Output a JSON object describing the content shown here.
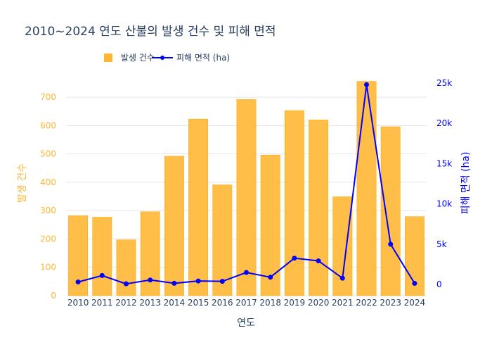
{
  "chart_data": {
    "type": "bar",
    "title": "2010~2024 연도 산불의 발생 건수 및 피해 면적",
    "xlabel": "연도",
    "ylabel_left": "발생 건수",
    "ylabel_right": "피해 면적 (ha)",
    "categories": [
      "2010",
      "2011",
      "2012",
      "2013",
      "2014",
      "2015",
      "2016",
      "2017",
      "2018",
      "2019",
      "2020",
      "2021",
      "2022",
      "2023",
      "2024"
    ],
    "ylim_left": [
      0,
      750
    ],
    "yticks_left": [
      0,
      100,
      200,
      300,
      400,
      500,
      600,
      700
    ],
    "ylim_right": [
      -1400,
      25000
    ],
    "yticks_right": [
      {
        "value": 0,
        "label": "0"
      },
      {
        "value": 5000,
        "label": "5k"
      },
      {
        "value": 10000,
        "label": "10k"
      },
      {
        "value": 15000,
        "label": "15k"
      },
      {
        "value": 20000,
        "label": "20k"
      },
      {
        "value": 25000,
        "label": "25k"
      }
    ],
    "series": [
      {
        "name": "발생 건수",
        "type": "bar",
        "axis": "left",
        "color": "#FFB733",
        "values": [
          282,
          277,
          197,
          296,
          492,
          623,
          391,
          692,
          496,
          653,
          620,
          349,
          756,
          596,
          279
        ]
      },
      {
        "name": "피해 면적 (ha)",
        "type": "line",
        "axis": "right",
        "color": "#0000FF",
        "values": [
          300,
          1100,
          70,
          550,
          140,
          420,
          380,
          1480,
          890,
          3260,
          2920,
          770,
          24800,
          4990,
          130
        ]
      }
    ],
    "grid": true,
    "legend": "top"
  }
}
